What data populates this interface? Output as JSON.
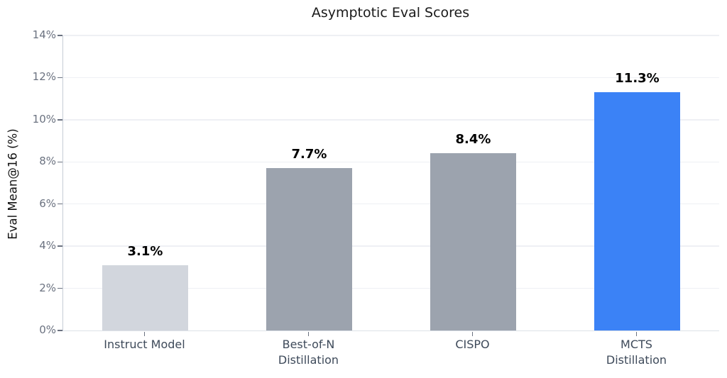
{
  "title": "Asymptotic Eval Scores",
  "chart_data": {
    "type": "bar",
    "title": "Asymptotic Eval Scores",
    "xlabel": "",
    "ylabel": "Eval Mean@16 (%)",
    "categories": [
      "Instruct Model",
      "Best-of-N\nDistillation",
      "CISPO",
      "MCTS\nDistillation"
    ],
    "values": [
      3.1,
      7.7,
      8.4,
      11.3
    ],
    "value_labels": [
      "3.1%",
      "7.7%",
      "8.4%",
      "11.3%"
    ],
    "bar_colors": [
      "#d2d6dd",
      "#9ca3ae",
      "#9ca3ae",
      "#3b82f6"
    ],
    "ylim": [
      0,
      14
    ],
    "ytick_values": [
      0,
      2,
      4,
      6,
      8,
      10,
      12,
      14
    ],
    "ytick_labels": [
      "0%",
      "2%",
      "4%",
      "6%",
      "8%",
      "10%",
      "12%",
      "14%"
    ],
    "grid": "horizontal",
    "legend": "none"
  },
  "colors": {
    "background": "#ffffff",
    "gridline": "#eef0f4",
    "axis_spine_left": "#c6ccd6",
    "axis_spine_bottom": "#dde1e8",
    "tick_mark": "#6b7280",
    "ytick_label_text": "#6b7280",
    "category_label_text": "#3e4a5a",
    "title_text": "#1a1a1a",
    "value_label_text": "#000000",
    "highlight_bar": "#3b82f6",
    "neutral_bar": "#9ca3ae",
    "muted_bar": "#d2d6dd"
  }
}
